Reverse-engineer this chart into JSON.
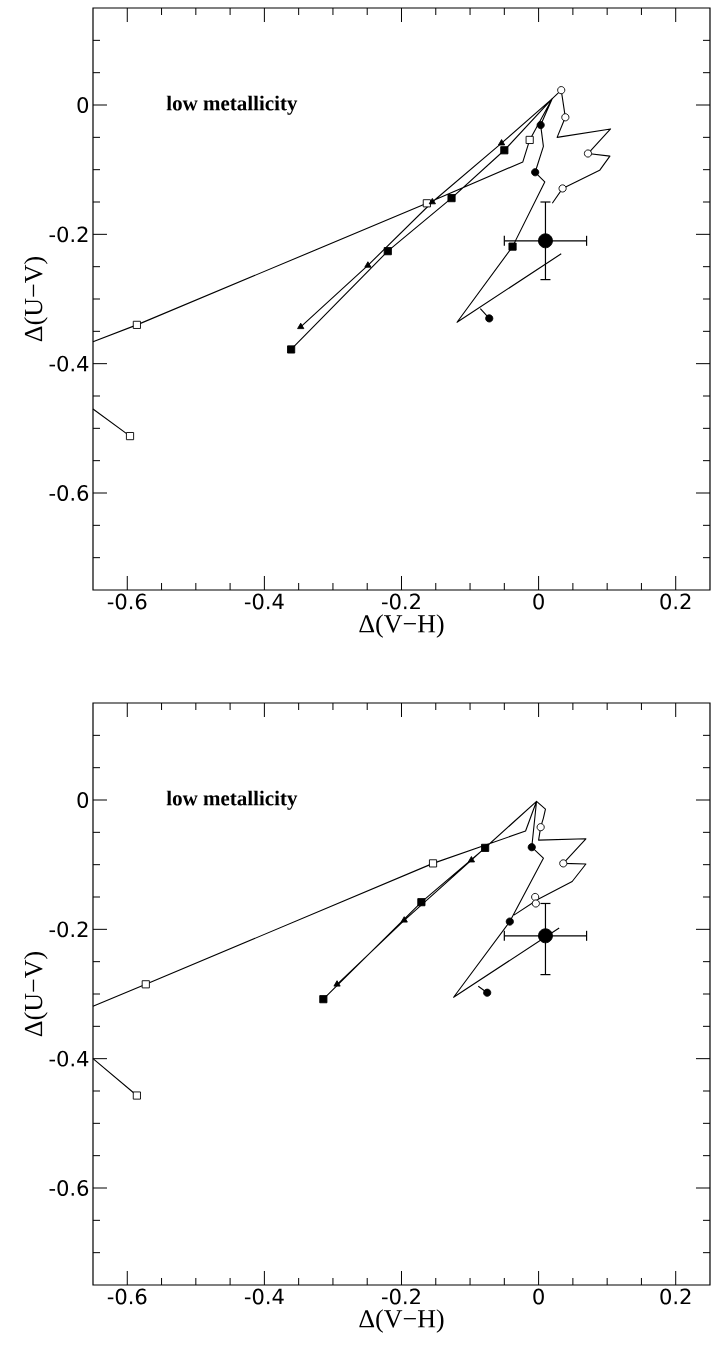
{
  "chart_data": [
    {
      "type": "scatter",
      "xlabel": "Δ(V−H)",
      "ylabel": "Δ(U−V)",
      "annotations": [
        "low metallicity"
      ],
      "xlim": [
        -0.65,
        0.25
      ],
      "ylim": [
        -0.75,
        0.15
      ],
      "xticks": [
        -0.6,
        -0.4,
        -0.2,
        0,
        0.2,
        {
          "value": -0.55,
          "label": null
        },
        {
          "value": -0.5,
          "label": null
        },
        {
          "value": -0.45,
          "label": null
        },
        {
          "value": -0.35,
          "label": null
        },
        {
          "value": -0.3,
          "label": null
        },
        {
          "value": -0.25,
          "label": null
        },
        {
          "value": -0.15,
          "label": null
        },
        {
          "value": -0.1,
          "label": null
        },
        {
          "value": -0.05,
          "label": null
        },
        {
          "value": 0.05,
          "label": null
        },
        {
          "value": 0.1,
          "label": null
        },
        {
          "value": 0.15,
          "label": null
        }
      ],
      "yticks": [
        0,
        -0.2,
        -0.4,
        -0.6,
        {
          "value": 0.1,
          "label": null
        },
        {
          "value": 0.05,
          "label": null
        },
        {
          "value": -0.05,
          "label": null
        },
        {
          "value": -0.1,
          "label": null
        },
        {
          "value": -0.15,
          "label": null
        },
        {
          "value": -0.25,
          "label": null
        },
        {
          "value": -0.3,
          "label": null
        },
        {
          "value": -0.35,
          "label": null
        },
        {
          "value": -0.45,
          "label": null
        },
        {
          "value": -0.5,
          "label": null
        },
        {
          "value": -0.55,
          "label": null
        },
        {
          "value": -0.65,
          "label": null
        },
        {
          "value": -0.7,
          "label": null
        }
      ],
      "series": [
        {
          "type": "line",
          "color": "#000000",
          "x": [
            -0.65,
            -0.586,
            -0.163,
            -0.023,
            -0.013,
            0.02,
            -0.054,
            -0.155,
            -0.249,
            -0.347,
            null,
            -0.361,
            -0.22,
            -0.127,
            -0.05,
            0.02,
            0.033,
            0.039,
            0.027,
            0.105,
            0.072,
            0.104,
            0.089,
            0.035,
            0.02,
            null,
            0.02,
            0.003,
            0.007,
            -0.005,
            0.009,
            -0.038,
            -0.119,
            0.033,
            null,
            -0.65,
            -0.596,
            null,
            -0.085,
            -0.072
          ],
          "values": [
            -0.366,
            -0.34,
            -0.152,
            -0.088,
            -0.054,
            0.01,
            -0.059,
            -0.15,
            -0.248,
            -0.343,
            null,
            -0.378,
            -0.226,
            -0.144,
            -0.07,
            0.01,
            0.023,
            -0.019,
            -0.05,
            -0.037,
            -0.075,
            -0.079,
            -0.101,
            -0.129,
            -0.152,
            null,
            0.01,
            -0.031,
            -0.064,
            -0.104,
            -0.119,
            -0.219,
            -0.336,
            -0.23,
            null,
            -0.47,
            -0.512,
            null,
            -0.315,
            -0.33
          ]
        },
        {
          "marker": "square",
          "color": "#ffffff",
          "x": [
            -0.586,
            -0.596,
            -0.163,
            -0.013
          ],
          "values": [
            -0.34,
            -0.512,
            -0.152,
            -0.054
          ]
        },
        {
          "marker": "triangle",
          "color": "#000000",
          "x": [
            -0.347,
            -0.249,
            -0.155,
            -0.054
          ],
          "values": [
            -0.343,
            -0.248,
            -0.15,
            -0.059
          ]
        },
        {
          "marker": "square",
          "color": "#000000",
          "x": [
            -0.361,
            -0.22,
            -0.127,
            -0.05,
            -0.038
          ],
          "values": [
            -0.378,
            -0.226,
            -0.144,
            -0.07,
            -0.219
          ]
        },
        {
          "marker": "circle",
          "color": "#ffffff",
          "x": [
            0.033,
            0.039,
            0.072,
            0.035
          ],
          "values": [
            0.023,
            -0.019,
            -0.075,
            -0.129
          ]
        },
        {
          "marker": "circle",
          "color": "#000000",
          "x": [
            0.003,
            -0.005,
            -0.072
          ],
          "values": [
            -0.031,
            -0.104,
            -0.33
          ]
        },
        {
          "marker": "circle",
          "color": "#000000",
          "x": [
            0.01
          ],
          "values": [
            -0.21
          ],
          "errors": [
            [
              -0.27,
              -0.15
            ]
          ],
          "xerrors": [
            [
              -0.05,
              0.07
            ]
          ]
        }
      ]
    },
    {
      "type": "scatter",
      "xlabel": "Δ(V−H)",
      "ylabel": "Δ(U−V)",
      "annotations": [
        "low metallicity"
      ],
      "xlim": [
        -0.65,
        0.25
      ],
      "ylim": [
        -0.75,
        0.15
      ],
      "xticks": [
        -0.6,
        -0.4,
        -0.2,
        0,
        0.2,
        {
          "value": -0.55,
          "label": null
        },
        {
          "value": -0.5,
          "label": null
        },
        {
          "value": -0.45,
          "label": null
        },
        {
          "value": -0.35,
          "label": null
        },
        {
          "value": -0.3,
          "label": null
        },
        {
          "value": -0.25,
          "label": null
        },
        {
          "value": -0.15,
          "label": null
        },
        {
          "value": -0.1,
          "label": null
        },
        {
          "value": -0.05,
          "label": null
        },
        {
          "value": 0.05,
          "label": null
        },
        {
          "value": 0.1,
          "label": null
        },
        {
          "value": 0.15,
          "label": null
        }
      ],
      "yticks": [
        0,
        -0.2,
        -0.4,
        -0.6,
        {
          "value": 0.1,
          "label": null
        },
        {
          "value": 0.05,
          "label": null
        },
        {
          "value": -0.05,
          "label": null
        },
        {
          "value": -0.1,
          "label": null
        },
        {
          "value": -0.15,
          "label": null
        },
        {
          "value": -0.25,
          "label": null
        },
        {
          "value": -0.3,
          "label": null
        },
        {
          "value": -0.35,
          "label": null
        },
        {
          "value": -0.45,
          "label": null
        },
        {
          "value": -0.5,
          "label": null
        },
        {
          "value": -0.55,
          "label": null
        },
        {
          "value": -0.65,
          "label": null
        },
        {
          "value": -0.7,
          "label": null
        }
      ],
      "series": [
        {
          "type": "line",
          "color": "#000000",
          "x": [
            -0.65,
            -0.573,
            -0.154,
            -0.019,
            -0.003,
            -0.098,
            -0.196,
            -0.294,
            null,
            -0.314,
            -0.171,
            -0.078,
            -0.003,
            0.01,
            0.007,
            0.003,
            0,
            0.069,
            0.036,
            0.069,
            0.049,
            0,
            -0.036,
            null,
            -0.003,
            -0.01,
            0.007,
            -0.042,
            -0.124,
            0.03,
            null,
            -0.65,
            -0.586,
            null,
            -0.088,
            -0.075
          ],
          "values": [
            -0.319,
            -0.285,
            -0.098,
            -0.048,
            -0.002,
            -0.093,
            -0.186,
            -0.285,
            null,
            -0.308,
            -0.158,
            -0.074,
            -0.002,
            -0.014,
            -0.028,
            -0.042,
            -0.062,
            -0.06,
            -0.098,
            -0.099,
            -0.126,
            -0.153,
            -0.178,
            null,
            -0.002,
            -0.073,
            -0.09,
            -0.188,
            -0.305,
            -0.198,
            null,
            -0.4,
            -0.457,
            null,
            -0.288,
            -0.298
          ]
        },
        {
          "marker": "square",
          "color": "#ffffff",
          "x": [
            -0.573,
            -0.586,
            -0.154
          ],
          "values": [
            -0.285,
            -0.457,
            -0.098
          ]
        },
        {
          "marker": "triangle",
          "color": "#000000",
          "x": [
            -0.294,
            -0.196,
            -0.098
          ],
          "values": [
            -0.285,
            -0.186,
            -0.093
          ]
        },
        {
          "marker": "square",
          "color": "#000000",
          "x": [
            -0.314,
            -0.171,
            -0.078
          ],
          "values": [
            -0.308,
            -0.158,
            -0.074
          ]
        },
        {
          "marker": "circle",
          "color": "#ffffff",
          "x": [
            0.003,
            0.036,
            -0.005,
            -0.004
          ],
          "values": [
            -0.042,
            -0.098,
            -0.15,
            -0.16
          ]
        },
        {
          "marker": "circle",
          "color": "#000000",
          "x": [
            -0.01,
            -0.042,
            -0.075
          ],
          "values": [
            -0.073,
            -0.188,
            -0.298
          ]
        },
        {
          "marker": "circle",
          "color": "#000000",
          "x": [
            0.01
          ],
          "values": [
            -0.21
          ],
          "errors": [
            [
              -0.27,
              -0.16
            ]
          ],
          "xerrors": [
            [
              -0.05,
              0.07
            ]
          ]
        }
      ]
    }
  ]
}
